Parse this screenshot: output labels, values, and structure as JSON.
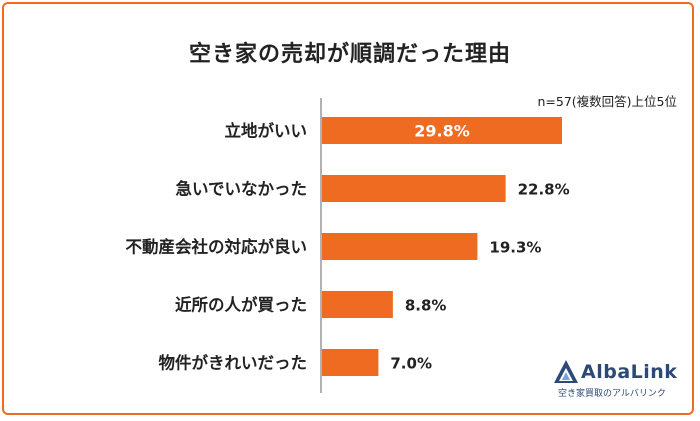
{
  "title": "空き家の売却が順調だった理由",
  "note": "n=57(複数回答)上位5位",
  "colors": {
    "bar": "#ee6b21",
    "frame": "#ee6b21",
    "axis": "#999999",
    "logo": "#2d4a77"
  },
  "logo": {
    "word": "AlbaLink",
    "tagline": "空き家買取のアルバリンク",
    "icon": "triangle-mountain-icon"
  },
  "chart_data": {
    "type": "bar",
    "orientation": "horizontal",
    "title": "空き家の売却が順調だった理由",
    "categories": [
      "立地がいい",
      "急いでいなかった",
      "不動産会社の対応が良い",
      "近所の人が買った",
      "物件がきれいだった"
    ],
    "values": [
      29.8,
      22.8,
      19.3,
      8.8,
      7.0
    ],
    "value_labels": [
      "29.8%",
      "22.8%",
      "19.3%",
      "8.8%",
      "7.0%"
    ],
    "unit": "%",
    "xlim": [
      0,
      34
    ],
    "grid": false,
    "legend": "none"
  }
}
